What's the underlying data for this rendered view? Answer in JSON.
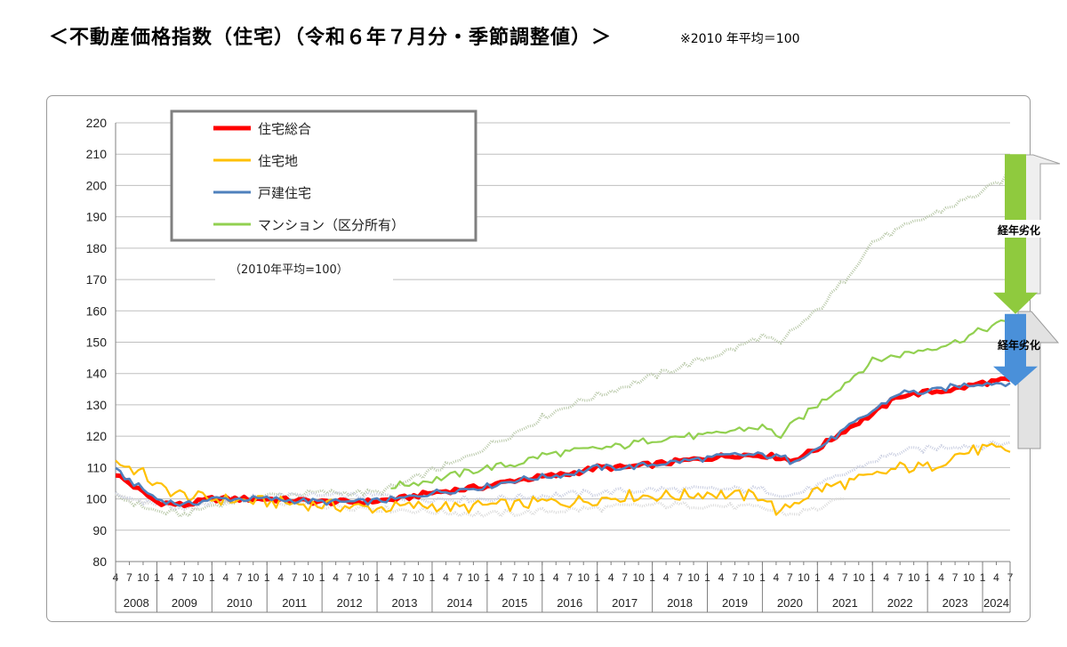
{
  "header": {
    "title": "＜不動産価格指数（住宅）（令和６年７月分・季節調整値）＞",
    "note": "※2010 年平均＝100"
  },
  "chart_data": {
    "type": "line",
    "frequency": "monthly",
    "start": "2008-04",
    "end": "2024-07",
    "ylim": [
      80,
      220
    ],
    "yticks": [
      80,
      90,
      100,
      110,
      120,
      130,
      140,
      150,
      160,
      170,
      180,
      190,
      200,
      210,
      220
    ],
    "grid": true,
    "years": [
      "2008",
      "2009",
      "2010",
      "2011",
      "2012",
      "2013",
      "2014",
      "2015",
      "2016",
      "2017",
      "2018",
      "2019",
      "2020",
      "2021",
      "2022",
      "2023",
      "2024"
    ],
    "month_ticks": [
      "1",
      "4",
      "7",
      "10"
    ],
    "note": "（2010年平均=100）",
    "legend_position": "top-left",
    "series": [
      {
        "name": "住宅総合",
        "color": "#ff0000",
        "anchors": [
          [
            "2008-04",
            108
          ],
          [
            "2009-01",
            99
          ],
          [
            "2009-07",
            98
          ],
          [
            "2010-01",
            100
          ],
          [
            "2011-01",
            100
          ],
          [
            "2012-01",
            99
          ],
          [
            "2012-10",
            99
          ],
          [
            "2013-06",
            100
          ],
          [
            "2014-01",
            102
          ],
          [
            "2014-07",
            103
          ],
          [
            "2015-01",
            104
          ],
          [
            "2015-07",
            106
          ],
          [
            "2016-01",
            107
          ],
          [
            "2016-07",
            108
          ],
          [
            "2017-01",
            110
          ],
          [
            "2017-07",
            110
          ],
          [
            "2018-01",
            111
          ],
          [
            "2018-07",
            112
          ],
          [
            "2019-01",
            113
          ],
          [
            "2019-07",
            114
          ],
          [
            "2020-01",
            114
          ],
          [
            "2020-06",
            113
          ],
          [
            "2020-07",
            112
          ],
          [
            "2021-01",
            116
          ],
          [
            "2021-07",
            122
          ],
          [
            "2022-01",
            127
          ],
          [
            "2022-07",
            133
          ],
          [
            "2023-01",
            134
          ],
          [
            "2023-07",
            135
          ],
          [
            "2024-01",
            137
          ],
          [
            "2024-07",
            138
          ]
        ]
      },
      {
        "name": "住宅地",
        "color": "#ffc000",
        "anchors": [
          [
            "2008-04",
            112
          ],
          [
            "2008-10",
            108
          ],
          [
            "2009-01",
            104
          ],
          [
            "2009-07",
            101
          ],
          [
            "2010-01",
            100
          ],
          [
            "2011-01",
            99
          ],
          [
            "2012-01",
            98
          ],
          [
            "2013-01",
            97
          ],
          [
            "2014-01",
            98
          ],
          [
            "2014-07",
            97
          ],
          [
            "2015-01",
            98
          ],
          [
            "2015-07",
            98
          ],
          [
            "2016-01",
            99
          ],
          [
            "2016-07",
            99
          ],
          [
            "2017-01",
            100
          ],
          [
            "2017-07",
            101
          ],
          [
            "2018-01",
            101
          ],
          [
            "2018-07",
            101
          ],
          [
            "2019-01",
            102
          ],
          [
            "2019-07",
            101
          ],
          [
            "2020-01",
            101
          ],
          [
            "2020-05",
            95
          ],
          [
            "2020-07",
            98
          ],
          [
            "2021-01",
            103
          ],
          [
            "2021-07",
            105
          ],
          [
            "2022-01",
            107
          ],
          [
            "2022-07",
            110
          ],
          [
            "2023-01",
            110
          ],
          [
            "2023-07",
            114
          ],
          [
            "2024-01",
            116
          ],
          [
            "2024-07",
            115
          ]
        ]
      },
      {
        "name": "戸建住宅",
        "color": "#4f81bd",
        "anchors": [
          [
            "2008-04",
            109
          ],
          [
            "2009-01",
            100
          ],
          [
            "2009-07",
            98
          ],
          [
            "2010-01",
            100
          ],
          [
            "2011-01",
            100
          ],
          [
            "2012-01",
            99
          ],
          [
            "2012-10",
            99
          ],
          [
            "2013-06",
            100
          ],
          [
            "2014-01",
            102
          ],
          [
            "2014-07",
            103
          ],
          [
            "2015-01",
            104
          ],
          [
            "2015-07",
            106
          ],
          [
            "2016-01",
            107
          ],
          [
            "2016-07",
            108
          ],
          [
            "2017-01",
            110
          ],
          [
            "2017-07",
            110
          ],
          [
            "2018-01",
            111
          ],
          [
            "2018-07",
            112
          ],
          [
            "2019-01",
            113
          ],
          [
            "2019-07",
            114
          ],
          [
            "2020-01",
            114
          ],
          [
            "2020-06",
            113
          ],
          [
            "2020-07",
            112
          ],
          [
            "2021-01",
            116
          ],
          [
            "2021-07",
            122
          ],
          [
            "2022-01",
            128
          ],
          [
            "2022-07",
            134
          ],
          [
            "2023-01",
            134
          ],
          [
            "2023-07",
            136
          ],
          [
            "2024-01",
            137
          ],
          [
            "2024-07",
            137
          ]
        ]
      },
      {
        "name": "マンション（区分所有）",
        "color": "#92d050",
        "anchors": [
          [
            "2013-04",
            104
          ],
          [
            "2014-01",
            106
          ],
          [
            "2014-07",
            108
          ],
          [
            "2015-01",
            110
          ],
          [
            "2015-07",
            111
          ],
          [
            "2016-01",
            114
          ],
          [
            "2016-07",
            115
          ],
          [
            "2017-01",
            116
          ],
          [
            "2017-07",
            117
          ],
          [
            "2018-01",
            119
          ],
          [
            "2018-07",
            120
          ],
          [
            "2019-01",
            120
          ],
          [
            "2019-07",
            122
          ],
          [
            "2020-01",
            123
          ],
          [
            "2020-05",
            120
          ],
          [
            "2020-07",
            123
          ],
          [
            "2021-01",
            130
          ],
          [
            "2021-07",
            137
          ],
          [
            "2022-01",
            144
          ],
          [
            "2022-07",
            146
          ],
          [
            "2023-01",
            148
          ],
          [
            "2023-07",
            150
          ],
          [
            "2024-01",
            154
          ],
          [
            "2024-07",
            157
          ]
        ]
      }
    ],
    "ghost_series": [
      {
        "color": "#b8c8a8",
        "anchors": [
          [
            "2008-04",
            101
          ],
          [
            "2009-01",
            96
          ],
          [
            "2009-07",
            95
          ],
          [
            "2010-01",
            98
          ],
          [
            "2011-01",
            101
          ],
          [
            "2012-01",
            102
          ],
          [
            "2013-01",
            102
          ],
          [
            "2013-07",
            105
          ],
          [
            "2014-01",
            109
          ],
          [
            "2014-07",
            112
          ],
          [
            "2015-01",
            117
          ],
          [
            "2015-07",
            121
          ],
          [
            "2016-01",
            126
          ],
          [
            "2016-07",
            130
          ],
          [
            "2017-01",
            133
          ],
          [
            "2017-07",
            136
          ],
          [
            "2018-01",
            139
          ],
          [
            "2018-07",
            142
          ],
          [
            "2019-01",
            145
          ],
          [
            "2019-07",
            148
          ],
          [
            "2020-01",
            152
          ],
          [
            "2020-05",
            149
          ],
          [
            "2020-07",
            153
          ],
          [
            "2021-01",
            160
          ],
          [
            "2021-07",
            170
          ],
          [
            "2022-01",
            182
          ],
          [
            "2022-07",
            186
          ],
          [
            "2023-01",
            190
          ],
          [
            "2023-07",
            194
          ],
          [
            "2024-01",
            198
          ],
          [
            "2024-07",
            203
          ]
        ]
      },
      {
        "color": "#c8cde0",
        "anchors": [
          [
            "2008-04",
            101
          ],
          [
            "2009-07",
            97
          ],
          [
            "2010-01",
            99
          ],
          [
            "2011-01",
            101
          ],
          [
            "2012-01",
            101
          ],
          [
            "2013-01",
            101
          ],
          [
            "2014-01",
            100
          ],
          [
            "2015-01",
            100
          ],
          [
            "2016-01",
            101
          ],
          [
            "2017-01",
            102
          ],
          [
            "2018-01",
            103
          ],
          [
            "2019-01",
            103
          ],
          [
            "2020-01",
            103
          ],
          [
            "2020-07",
            101
          ],
          [
            "2021-01",
            104
          ],
          [
            "2021-07",
            108
          ],
          [
            "2022-01",
            112
          ],
          [
            "2022-07",
            115
          ],
          [
            "2023-01",
            116
          ],
          [
            "2023-07",
            117
          ],
          [
            "2024-01",
            117
          ],
          [
            "2024-07",
            118
          ]
        ]
      },
      {
        "color": "#dadada",
        "anchors": [
          [
            "2008-04",
            101
          ],
          [
            "2009-07",
            97
          ],
          [
            "2010-01",
            99
          ],
          [
            "2011-01",
            99
          ],
          [
            "2012-01",
            98
          ],
          [
            "2013-01",
            97
          ],
          [
            "2014-01",
            96
          ],
          [
            "2015-01",
            95
          ],
          [
            "2016-01",
            96
          ],
          [
            "2017-01",
            97
          ],
          [
            "2018-01",
            98
          ],
          [
            "2019-01",
            98
          ],
          [
            "2020-01",
            97
          ],
          [
            "2020-07",
            95
          ],
          [
            "2021-01",
            97
          ],
          [
            "2021-07",
            100
          ]
        ]
      }
    ],
    "annotations": [
      {
        "label": "経年劣化",
        "color": "#8fca3e",
        "from": 210,
        "to": 159
      },
      {
        "label": "経年劣化",
        "color": "#4a90d9",
        "from": 159,
        "to": 136
      }
    ]
  }
}
